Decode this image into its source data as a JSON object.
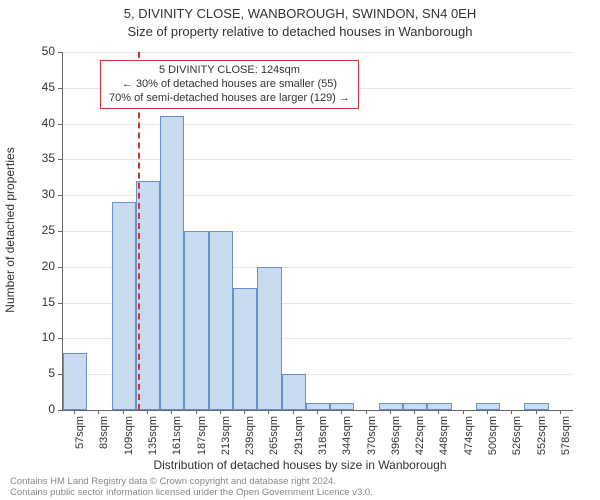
{
  "title_line1": "5, DIVINITY CLOSE, WANBOROUGH, SWINDON, SN4 0EH",
  "title_line2": "Size of property relative to detached houses in Wanborough",
  "y_axis_label": "Number of detached properties",
  "x_axis_label": "Distribution of detached houses by size in Wanborough",
  "chart": {
    "type": "histogram",
    "background_color": "#ffffff",
    "grid_color": "#e5e5e5",
    "axis_color": "#666666",
    "bar_fill": "#c9dbf0",
    "bar_border": "#6a8fc9",
    "bar_width_ratio": 1.0,
    "ylim": [
      0,
      50
    ],
    "yticks": [
      0,
      5,
      10,
      15,
      20,
      25,
      30,
      35,
      40,
      45,
      50
    ],
    "x_categories": [
      "57sqm",
      "83sqm",
      "109sqm",
      "135sqm",
      "161sqm",
      "187sqm",
      "213sqm",
      "239sqm",
      "265sqm",
      "291sqm",
      "318sqm",
      "344sqm",
      "370sqm",
      "396sqm",
      "422sqm",
      "448sqm",
      "474sqm",
      "500sqm",
      "526sqm",
      "552sqm",
      "578sqm"
    ],
    "values": [
      8,
      0,
      29,
      32,
      41,
      25,
      25,
      17,
      20,
      5,
      1,
      1,
      0,
      1,
      1,
      1,
      0,
      1,
      0,
      1,
      0
    ],
    "tick_fontsize": 11,
    "label_fontsize": 12,
    "title_fontsize": 13
  },
  "marker": {
    "color": "#cc3333",
    "dash": "5,4",
    "position_sqm": 124,
    "line1": "5 DIVINITY CLOSE: 124sqm",
    "line2": "← 30% of detached houses are smaller (55)",
    "line3": "70% of semi-detached houses are larger (129) →"
  },
  "footer_line1": "Contains HM Land Registry data © Crown copyright and database right 2024.",
  "footer_line2": "Contains public sector information licensed under the Open Government Licence v3.0."
}
